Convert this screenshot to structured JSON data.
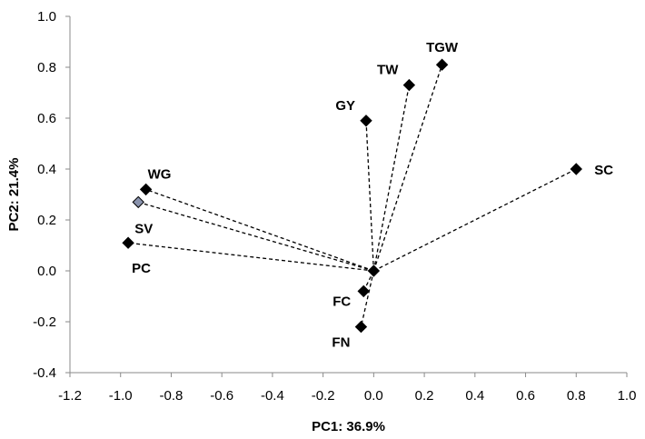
{
  "chart_data": {
    "type": "scatter",
    "title": "",
    "xlabel": "PC1: 36.9%",
    "ylabel": "PC2: 21.4%",
    "xlim": [
      -1.2,
      1.0
    ],
    "ylim": [
      -0.4,
      1.0
    ],
    "x_ticks": [
      "-1.2",
      "-1.0",
      "-0.8",
      "-0.6",
      "-0.4",
      "-0.2",
      "0.0",
      "0.2",
      "0.4",
      "0.6",
      "0.8",
      "1.0"
    ],
    "y_ticks": [
      "1.0",
      "0.8",
      "0.6",
      "0.4",
      "0.2",
      "0.0",
      "-0.2",
      "-0.4"
    ],
    "grid": false,
    "legend": "none",
    "marker": "diamond",
    "marker_color": "#000000",
    "line_style": "dashed",
    "origin": {
      "x": 0.0,
      "y": 0.0
    },
    "points": [
      {
        "label": "TGW",
        "x": 0.27,
        "y": 0.81,
        "label_pos": "above"
      },
      {
        "label": "TW",
        "x": 0.14,
        "y": 0.73,
        "label_pos": "upper-left"
      },
      {
        "label": "GY",
        "x": -0.03,
        "y": 0.59,
        "label_pos": "upper-left"
      },
      {
        "label": "SC",
        "x": 0.8,
        "y": 0.4,
        "label_pos": "right"
      },
      {
        "label": "WG",
        "x": -0.9,
        "y": 0.32,
        "label_pos": "upper-right"
      },
      {
        "label": "SV",
        "x": -0.93,
        "y": 0.27,
        "label_pos": "below"
      },
      {
        "label": "PC",
        "x": -0.97,
        "y": 0.11,
        "label_pos": "below-right"
      },
      {
        "label": "FC",
        "x": -0.04,
        "y": -0.08,
        "label_pos": "left"
      },
      {
        "label": "FN",
        "x": -0.05,
        "y": -0.22,
        "label_pos": "below-left"
      }
    ]
  }
}
